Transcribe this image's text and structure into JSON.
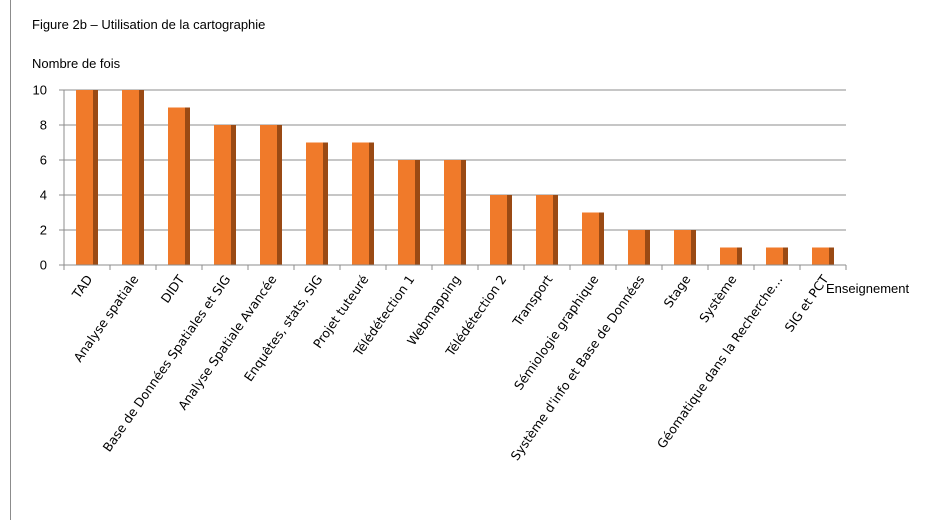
{
  "figure_title": "Figure 2b – Utilisation de la cartographie",
  "chart_data": {
    "type": "bar",
    "title": "",
    "ylabel": "Nombre de fois",
    "xlabel": "Enseignement",
    "ylim": [
      0,
      10
    ],
    "yticks": [
      0,
      2,
      4,
      6,
      8,
      10
    ],
    "grid": true,
    "legend": "none",
    "bar_color": "#f07a2a",
    "bar_shadow_color": "#9a4a14",
    "categories": [
      "TAD",
      "Analyse spatiale",
      "DIDT",
      "Base de Données Spatiales et SIG",
      "Analyse Spatiale Avancée",
      "Enquêtes, stats, SIG",
      "Projet tuteuré",
      "Télédétection 1",
      "Webmapping",
      "Télédétection 2",
      "Transport",
      "Sémiologie graphique",
      "Système d'info et Base de Données",
      "Stage",
      "Système",
      "Géomatique dans la Recherche…",
      "SIG et PCT"
    ],
    "values": [
      10,
      10,
      9,
      8,
      8,
      7,
      7,
      6,
      6,
      4,
      4,
      3,
      2,
      2,
      1,
      1,
      1
    ]
  }
}
